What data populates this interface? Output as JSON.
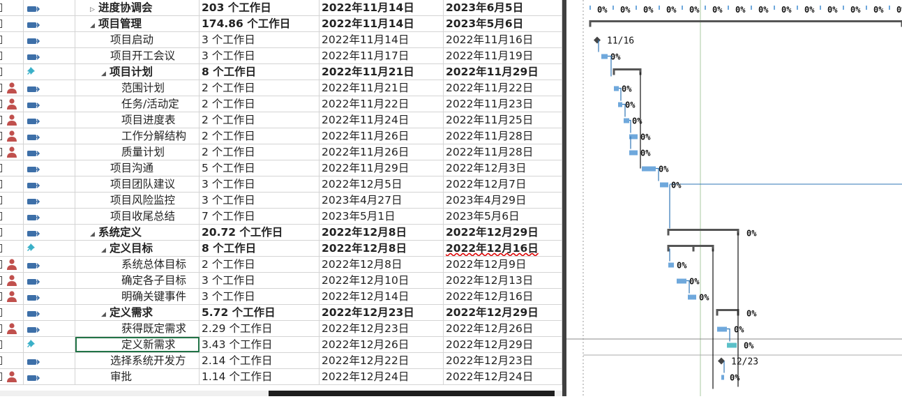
{
  "colors": {
    "accent_green": "#217346",
    "bar": "#6fa8dc",
    "bar_teal": "#5bc0c8",
    "link": "#2e75b6",
    "summary": "#555555",
    "resource_icon": "#c0504d"
  },
  "rows": [
    {
      "mode": "auto",
      "res": false,
      "level": 1,
      "summary": true,
      "collapsed": true,
      "name": "进度协调会",
      "dur": "203 个工作日",
      "start": "2022年11月14日",
      "finish": "2023年6月5日"
    },
    {
      "mode": "auto",
      "res": false,
      "level": 1,
      "summary": true,
      "name": "项目管理",
      "dur": "174.86 个工作日",
      "start": "2022年11月14日",
      "finish": "2023年5月6日"
    },
    {
      "mode": "auto",
      "res": false,
      "level": 2,
      "name": "项目启动",
      "dur": "3 个工作日",
      "start": "2022年11月14日",
      "finish": "2022年11月16日"
    },
    {
      "mode": "auto",
      "res": false,
      "level": 2,
      "name": "项目开工会议",
      "dur": "3 个工作日",
      "start": "2022年11月17日",
      "finish": "2022年11月19日"
    },
    {
      "mode": "manual",
      "res": false,
      "level": 2,
      "summary": true,
      "name": "项目计划",
      "dur": "8 个工作日",
      "start": "2022年11月21日",
      "finish": "2022年11月29日"
    },
    {
      "mode": "auto",
      "res": true,
      "level": 3,
      "name": "范围计划",
      "dur": "2 个工作日",
      "start": "2022年11月21日",
      "finish": "2022年11月22日"
    },
    {
      "mode": "auto",
      "res": true,
      "level": 3,
      "name": "任务/活动定",
      "dur": "2 个工作日",
      "start": "2022年11月22日",
      "finish": "2022年11月23日"
    },
    {
      "mode": "auto",
      "res": true,
      "level": 3,
      "name": "项目进度表",
      "dur": "2 个工作日",
      "start": "2022年11月24日",
      "finish": "2022年11月25日"
    },
    {
      "mode": "auto",
      "res": true,
      "level": 3,
      "name": "工作分解结构",
      "dur": "2 个工作日",
      "start": "2022年11月26日",
      "finish": "2022年11月28日"
    },
    {
      "mode": "auto",
      "res": true,
      "level": 3,
      "name": "质量计划",
      "dur": "2 个工作日",
      "start": "2022年11月26日",
      "finish": "2022年11月28日"
    },
    {
      "mode": "auto",
      "res": false,
      "level": 2,
      "name": "项目沟通",
      "dur": "5 个工作日",
      "start": "2022年11月29日",
      "finish": "2022年12月3日"
    },
    {
      "mode": "auto",
      "res": false,
      "level": 2,
      "name": "项目团队建议",
      "dur": "3 个工作日",
      "start": "2022年12月5日",
      "finish": "2022年12月7日"
    },
    {
      "mode": "auto",
      "res": false,
      "level": 2,
      "name": "项目风险监控",
      "dur": "3 个工作日",
      "start": "2023年4月27日",
      "finish": "2023年4月29日"
    },
    {
      "mode": "auto",
      "res": false,
      "level": 2,
      "name": "项目收尾总结",
      "dur": "7 个工作日",
      "start": "2023年5月1日",
      "finish": "2023年5月6日"
    },
    {
      "mode": "auto",
      "res": false,
      "level": 1,
      "summary": true,
      "name": "系统定义",
      "dur": "20.72 个工作日",
      "start": "2022年12月8日",
      "finish": "2022年12月29日"
    },
    {
      "mode": "manual",
      "res": false,
      "level": 2,
      "summary": true,
      "name": "定义目标",
      "dur": "8 个工作日",
      "start": "2022年12月8日",
      "finish": "2022年12月16日",
      "squiggle": true
    },
    {
      "mode": "auto",
      "res": true,
      "level": 3,
      "name": "系统总体目标",
      "dur": "2 个工作日",
      "start": "2022年12月8日",
      "finish": "2022年12月9日"
    },
    {
      "mode": "auto",
      "res": true,
      "level": 3,
      "name": "确定各子目标",
      "dur": "3 个工作日",
      "start": "2022年12月10日",
      "finish": "2022年12月13日"
    },
    {
      "mode": "auto",
      "res": true,
      "level": 3,
      "name": "明确关键事件",
      "dur": "3 个工作日",
      "start": "2022年12月14日",
      "finish": "2022年12月16日"
    },
    {
      "mode": "auto",
      "res": false,
      "level": 2,
      "summary": true,
      "name": "定义需求",
      "dur": "5.72 个工作日",
      "start": "2022年12月23日",
      "finish": "2022年12月29日"
    },
    {
      "mode": "auto",
      "res": true,
      "level": 3,
      "name": "获得既定需求",
      "dur": "2.29 个工作日",
      "start": "2022年12月23日",
      "finish": "2022年12月26日"
    },
    {
      "mode": "manual",
      "res": false,
      "level": 3,
      "name": "定义新需求",
      "dur": "3.43 个工作日",
      "start": "2022年12月26日",
      "finish": "2022年12月29日",
      "selected": true
    },
    {
      "mode": "auto",
      "res": false,
      "level": 2,
      "name": "选择系统开发方",
      "dur": "2.14 个工作日",
      "start": "2022年12月22日",
      "finish": "2022年12月23日"
    },
    {
      "mode": "auto",
      "res": true,
      "level": 2,
      "name": "审批",
      "dur": "1.14 个工作日",
      "start": "2022年12月24日",
      "finish": "2022年12月24日"
    }
  ],
  "gantt": {
    "header_pct": [
      "0%",
      "0%",
      "0%",
      "0%",
      "0%",
      "0%",
      "0%",
      "0%",
      "0%",
      "0%",
      "0%",
      "0%",
      "0%",
      "0%",
      "0%"
    ],
    "milestone_labels": [
      "11/16",
      "12/23"
    ],
    "bar_pct": "0%"
  }
}
